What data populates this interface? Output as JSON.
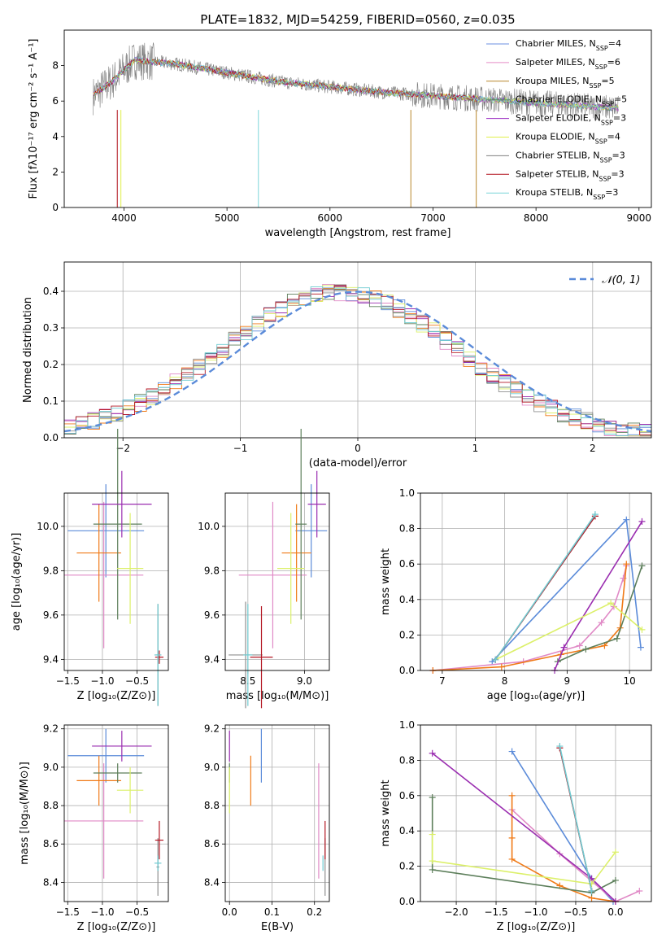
{
  "figure_title": "PLATE=1832, MJD=54259, FIBERID=0560, z=0.035",
  "colors": {
    "models": [
      "#6b8fe0",
      "#e58cc6",
      "#b8862b",
      "#5c8a5f",
      "#9c2ec2",
      "#e0f04a",
      "#7f7f7f",
      "#b00f18",
      "#7dd6d9"
    ],
    "curves": [
      "#5b8bd9",
      "#e089c6",
      "#f07a17",
      "#5d7f5b",
      "#9a2db0",
      "#dcf06a",
      "#8f8f8f",
      "#b31622",
      "#6fcbd1"
    ],
    "normal": "#5b8bd9"
  },
  "chart_data": [
    {
      "type": "line",
      "name": "spectrum",
      "title": "PLATE=1832, MJD=54259, FIBERID=0560, z=0.035",
      "xlabel": "wavelength [Angstrom, rest frame]",
      "ylabel": "Flux [fλ10⁻¹⁷ erg cm⁻² s⁻¹ A⁻¹]",
      "xlim": [
        3420,
        9120
      ],
      "ylim": [
        0,
        10
      ],
      "xticks": [
        4000,
        5000,
        6000,
        7000,
        8000,
        9000
      ],
      "yticks": [
        0,
        2,
        4,
        6,
        8
      ],
      "grid": false,
      "legend_position": "top-right",
      "legend": [
        {
          "label": "Chabrier MILES, N",
          "sub": "SSP",
          "suffix": "=4"
        },
        {
          "label": "Salpeter MILES, N",
          "sub": "SSP",
          "suffix": "=6"
        },
        {
          "label": "Kroupa MILES, N",
          "sub": "SSP",
          "suffix": "=5"
        },
        {
          "label": "Chabrier ELODIE, N",
          "sub": "SSP",
          "suffix": "=5"
        },
        {
          "label": "Salpeter ELODIE, N",
          "sub": "SSP",
          "suffix": "=3"
        },
        {
          "label": "Kroupa ELODIE, N",
          "sub": "SSP",
          "suffix": "=4"
        },
        {
          "label": "Chabrier STELIB, N",
          "sub": "SSP",
          "suffix": "=3"
        },
        {
          "label": "Salpeter STELIB, N",
          "sub": "SSP",
          "suffix": "=3"
        },
        {
          "label": "Kroupa STELIB, N",
          "sub": "SSP",
          "suffix": "=3"
        }
      ],
      "continuum": {
        "x": [
          3700,
          3900,
          4100,
          4500,
          5000,
          5500,
          6000,
          6500,
          7000,
          7500,
          8000,
          8500,
          8800
        ],
        "y": [
          6.3,
          7.2,
          8.3,
          8.1,
          7.6,
          7.1,
          6.8,
          6.5,
          6.3,
          6.1,
          5.9,
          5.7,
          5.6
        ]
      }
    },
    {
      "type": "bar",
      "name": "residual histogram",
      "xlabel": "(data-model)/error",
      "ylabel": "Normed distribution",
      "xlim": [
        -2.5,
        2.5
      ],
      "ylim": [
        0,
        0.48
      ],
      "xticks": [
        -2,
        -1,
        0,
        1,
        2
      ],
      "yticks": [
        0.0,
        0.1,
        0.2,
        0.3,
        0.4
      ],
      "grid": true,
      "legend_position": "top-right",
      "legend_label": "𝒩(0, 1)",
      "bins": [
        -2.5,
        2.5,
        50
      ]
    },
    {
      "type": "scatter",
      "name": "age vs metallicity",
      "xlabel": "Z [log₁₀(Z/Z⊙)]",
      "ylabel": "age  [log₁₀(age/yr)]",
      "xlim": [
        -1.55,
        -0.05
      ],
      "ylim": [
        9.35,
        10.15
      ],
      "xticks": [
        -1.5,
        -1.0,
        -0.5
      ],
      "yticks": [
        9.4,
        9.6,
        9.8,
        10.0
      ],
      "grid": true,
      "points": [
        {
          "x": -0.95,
          "y": 9.98,
          "xerr": 0.55,
          "yerr": 0.21
        },
        {
          "x": -0.98,
          "y": 9.78,
          "xerr": 0.57,
          "yerr": 0.33
        },
        {
          "x": -1.05,
          "y": 9.88,
          "xerr": 0.32,
          "yerr": 0.22
        },
        {
          "x": -0.78,
          "y": 10.01,
          "xerr": 0.35,
          "yerr": 0.43
        },
        {
          "x": -0.72,
          "y": 10.1,
          "xerr": 0.43,
          "yerr": 0.15
        },
        {
          "x": -0.6,
          "y": 9.81,
          "xerr": 0.19,
          "yerr": 0.25
        },
        {
          "x": -0.2,
          "y": 9.42,
          "xerr": 0.02,
          "yerr": 0.23
        },
        {
          "x": -0.18,
          "y": 9.41,
          "xerr": 0.06,
          "yerr": 0.03
        },
        {
          "x": -0.2,
          "y": 9.42,
          "xerr": 0.05,
          "yerr": 0.23
        }
      ]
    },
    {
      "type": "scatter",
      "name": "age vs mass",
      "xlabel": "mass [log₁₀(M/M⊙)]",
      "ylabel": "",
      "xlim": [
        8.3,
        9.22
      ],
      "ylim": [
        9.35,
        10.15
      ],
      "xticks": [
        8.5,
        9.0
      ],
      "yticks": [
        9.4,
        9.6,
        9.8,
        10.0
      ],
      "grid": true,
      "points": [
        {
          "x": 9.06,
          "y": 9.98,
          "xerr": 0.14,
          "yerr": 0.21
        },
        {
          "x": 8.72,
          "y": 9.78,
          "xerr": 0.3,
          "yerr": 0.33
        },
        {
          "x": 8.93,
          "y": 9.88,
          "xerr": 0.13,
          "yerr": 0.22
        },
        {
          "x": 8.97,
          "y": 10.01,
          "xerr": 0.05,
          "yerr": 0.43
        },
        {
          "x": 9.11,
          "y": 10.1,
          "xerr": 0.08,
          "yerr": 0.15
        },
        {
          "x": 8.88,
          "y": 9.81,
          "xerr": 0.12,
          "yerr": 0.25
        },
        {
          "x": 8.48,
          "y": 9.42,
          "xerr": 0.15,
          "yerr": 0.24
        },
        {
          "x": 8.62,
          "y": 9.41,
          "xerr": 0.1,
          "yerr": 0.23
        },
        {
          "x": 8.5,
          "y": 9.42,
          "xerr": 0.04,
          "yerr": 0.23
        }
      ]
    },
    {
      "type": "line",
      "name": "mass weight vs age",
      "xlabel": "age  [log₁₀(age/yr)]",
      "ylabel": "mass weight",
      "xlim": [
        6.65,
        10.35
      ],
      "ylim": [
        0,
        1
      ],
      "xticks": [
        7,
        8,
        9,
        10
      ],
      "yticks": [
        0.0,
        0.2,
        0.4,
        0.6,
        0.8,
        1.0
      ],
      "grid": true,
      "series": [
        {
          "x": [
            7.8,
            9.95,
            10.18
          ],
          "y": [
            0.05,
            0.85,
            0.13
          ]
        },
        {
          "x": [
            6.85,
            8.3,
            9.2,
            9.55,
            9.75,
            9.9,
            9.95
          ],
          "y": [
            0.0,
            0.05,
            0.14,
            0.27,
            0.36,
            0.52,
            0.59
          ]
        },
        {
          "x": [
            6.85,
            7.95,
            8.9,
            9.6,
            9.85,
            9.95
          ],
          "y": [
            0.0,
            0.02,
            0.09,
            0.14,
            0.24,
            0.6
          ]
        },
        {
          "x": [
            8.85,
            9.3,
            9.8,
            10.2
          ],
          "y": [
            0.05,
            0.12,
            0.18,
            0.59
          ]
        },
        {
          "x": [
            8.8,
            8.95,
            10.2
          ],
          "y": [
            0.0,
            0.13,
            0.84
          ]
        },
        {
          "x": [
            7.85,
            9.7,
            10.2
          ],
          "y": [
            0.06,
            0.38,
            0.23
          ]
        },
        {
          "x": [
            7.85,
            9.45
          ],
          "y": [
            0.06,
            0.87
          ]
        },
        {
          "x": [
            7.85,
            9.45
          ],
          "y": [
            0.06,
            0.87
          ]
        },
        {
          "x": [
            7.85,
            9.45
          ],
          "y": [
            0.06,
            0.88
          ]
        }
      ]
    },
    {
      "type": "scatter",
      "name": "mass vs metallicity",
      "xlabel": "Z [log₁₀(Z/Z⊙)]",
      "ylabel": "mass [log₁₀(M/M⊙)]",
      "xlim": [
        -1.55,
        -0.05
      ],
      "ylim": [
        8.3,
        9.22
      ],
      "xticks": [
        -1.5,
        -1.0,
        -0.5
      ],
      "yticks": [
        8.4,
        8.6,
        8.8,
        9.0,
        9.2
      ],
      "grid": true,
      "points": [
        {
          "x": -0.95,
          "y": 9.06,
          "xerr": 0.55,
          "yerr": 0.14
        },
        {
          "x": -0.98,
          "y": 8.72,
          "xerr": 0.57,
          "yerr": 0.3
        },
        {
          "x": -1.05,
          "y": 8.93,
          "xerr": 0.32,
          "yerr": 0.13
        },
        {
          "x": -0.78,
          "y": 8.97,
          "xerr": 0.35,
          "yerr": 0.05
        },
        {
          "x": -0.72,
          "y": 9.11,
          "xerr": 0.43,
          "yerr": 0.08
        },
        {
          "x": -0.6,
          "y": 8.88,
          "xerr": 0.19,
          "yerr": 0.12
        },
        {
          "x": -0.2,
          "y": 8.48,
          "xerr": 0.02,
          "yerr": 0.15
        },
        {
          "x": -0.18,
          "y": 8.62,
          "xerr": 0.06,
          "yerr": 0.1
        },
        {
          "x": -0.2,
          "y": 8.5,
          "xerr": 0.05,
          "yerr": 0.04
        }
      ]
    },
    {
      "type": "scatter",
      "name": "mass vs extinction",
      "xlabel": "E(B-V)",
      "ylabel": "",
      "xlim": [
        -0.01,
        0.235
      ],
      "ylim": [
        8.3,
        9.22
      ],
      "xticks": [
        0.0,
        0.1,
        0.2
      ],
      "yticks": [
        8.4,
        8.6,
        8.8,
        9.0,
        9.2
      ],
      "grid": true,
      "points": [
        {
          "x": 0.075,
          "y": 9.06,
          "xerr": 0.0,
          "yerr": 0.14
        },
        {
          "x": 0.21,
          "y": 8.72,
          "xerr": 0.0,
          "yerr": 0.3
        },
        {
          "x": 0.05,
          "y": 8.93,
          "xerr": 0.0,
          "yerr": 0.13
        },
        {
          "x": 0.0,
          "y": 8.97,
          "xerr": 0.0,
          "yerr": 0.05
        },
        {
          "x": 0.0,
          "y": 9.11,
          "xerr": 0.0,
          "yerr": 0.08
        },
        {
          "x": 0.0,
          "y": 8.88,
          "xerr": 0.0,
          "yerr": 0.12
        },
        {
          "x": 0.225,
          "y": 8.48,
          "xerr": 0.0,
          "yerr": 0.15
        },
        {
          "x": 0.225,
          "y": 8.62,
          "xerr": 0.0,
          "yerr": 0.1
        },
        {
          "x": 0.22,
          "y": 8.5,
          "xerr": 0.0,
          "yerr": 0.04
        }
      ]
    },
    {
      "type": "line",
      "name": "mass weight vs metallicity",
      "xlabel": "Z [log₁₀(Z/Z⊙)]",
      "ylabel": "mass weight",
      "xlim": [
        -2.45,
        0.45
      ],
      "ylim": [
        0,
        1
      ],
      "xticks": [
        -2.0,
        -1.5,
        -1.0,
        -0.5,
        0.0
      ],
      "yticks": [
        0.0,
        0.2,
        0.4,
        0.6,
        0.8,
        1.0
      ],
      "grid": true,
      "series": [
        {
          "x": [
            -1.3,
            -0.3,
            -0.03
          ],
          "y": [
            0.85,
            0.13,
            0.0
          ]
        },
        {
          "x": [
            -1.3,
            -0.7,
            0.0,
            0.3
          ],
          "y": [
            0.52,
            0.27,
            0.0,
            0.06
          ]
        },
        {
          "x": [
            -1.3,
            -1.3,
            -1.3,
            -0.7,
            -0.3,
            0.0
          ],
          "y": [
            0.6,
            0.36,
            0.24,
            0.09,
            0.02,
            0.0
          ]
        },
        {
          "x": [
            -2.3,
            -2.3,
            -0.3,
            0.0
          ],
          "y": [
            0.59,
            0.18,
            0.05,
            0.12
          ]
        },
        {
          "x": [
            -2.3,
            -0.3,
            0.0
          ],
          "y": [
            0.84,
            0.13,
            0.0
          ]
        },
        {
          "x": [
            -2.3,
            -2.3,
            -0.3,
            0.0
          ],
          "y": [
            0.38,
            0.23,
            0.1,
            0.28
          ]
        },
        {
          "x": [
            -0.7,
            -0.3
          ],
          "y": [
            0.87,
            0.06
          ]
        },
        {
          "x": [
            -0.7,
            -0.3
          ],
          "y": [
            0.87,
            0.06
          ]
        },
        {
          "x": [
            -0.7,
            -0.3
          ],
          "y": [
            0.88,
            0.06
          ]
        }
      ]
    }
  ]
}
